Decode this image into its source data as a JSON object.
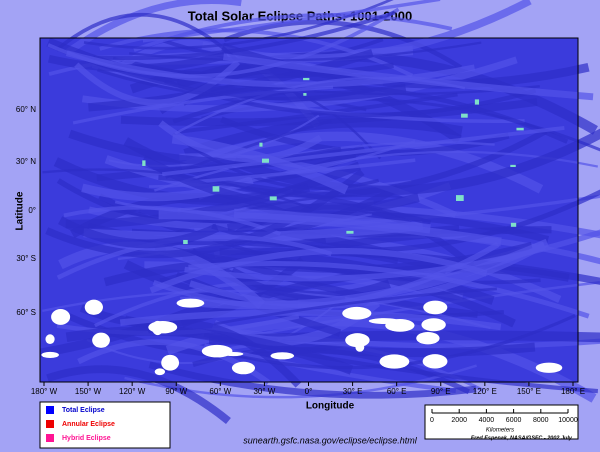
{
  "title": "Total Solar Eclipse Paths:  1001-2000",
  "y_axis_label": "Latitude",
  "x_axis_label": "Longitude",
  "latitude_ticks": [
    "60° N",
    "30° N",
    "0°",
    "30° S",
    "60° S"
  ],
  "longitude_ticks": [
    "180° W",
    "150° W",
    "120° W",
    "90° W",
    "60° W",
    "30° W",
    "0°",
    "30° E",
    "60° E",
    "90° E",
    "120° E",
    "150° E",
    "180° E"
  ],
  "legend": [
    "Total Eclipse",
    "Annular Eclipse",
    "Hybrid Eclipse"
  ],
  "scale_bar": {
    "labels": [
      "0",
      "2000",
      "4000",
      "6000",
      "8000",
      "10000"
    ],
    "unit": "Kilometers"
  },
  "url": "sunearth.gsfc.nasa.gov/eclipse/eclipse.html",
  "credit": "Fred Espenak, NASA/GSFC - 2002 July"
}
